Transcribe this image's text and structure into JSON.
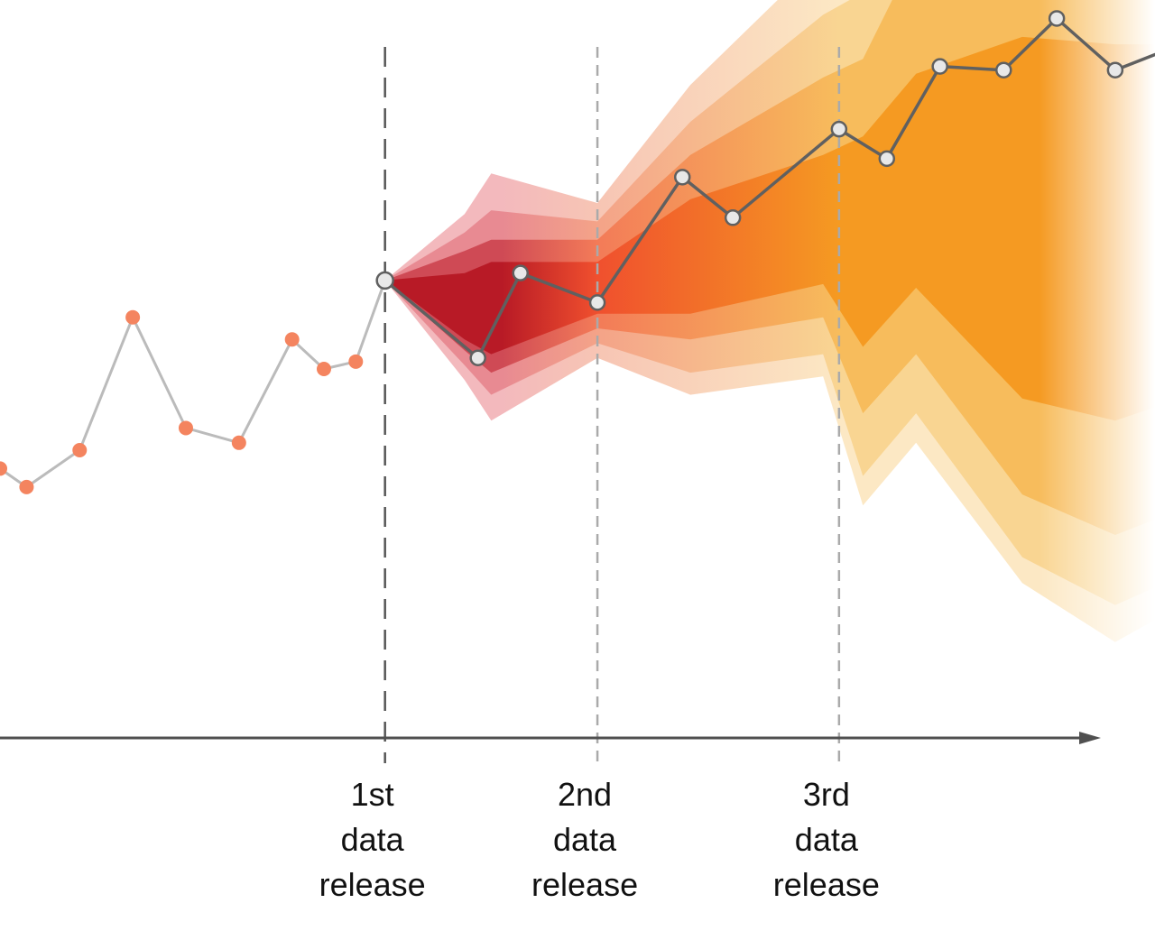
{
  "chart_data": {
    "type": "line",
    "title": "",
    "xlabel": "",
    "ylabel": "",
    "grid": false,
    "legend": "none",
    "axes": {
      "y_axis_visible": false,
      "x_axis_arrow": true
    },
    "xlim": [
      -1.0,
      42.5
    ],
    "ylim": [
      0,
      10
    ],
    "history": {
      "color": "#f4845f",
      "line_color": "#bbbbbb",
      "x": [
        -1,
        0,
        2,
        4,
        6,
        8,
        10,
        11.2,
        12.4,
        13.5
      ],
      "y": [
        3.65,
        3.4,
        3.9,
        5.7,
        4.2,
        4.0,
        5.4,
        5.0,
        5.1,
        6.2
      ]
    },
    "forecast_path": {
      "line_color": "#606060",
      "marker_fill": "#e8e8e8",
      "x": [
        13.5,
        17.0,
        18.6,
        21.5,
        24.7,
        26.6,
        30.6,
        32.4,
        34.4,
        36.8,
        38.8,
        41.0,
        43.5
      ],
      "y": [
        6.2,
        5.15,
        6.3,
        5.9,
        7.6,
        7.05,
        8.25,
        7.85,
        9.1,
        9.05,
        9.75,
        9.05,
        9.4
      ]
    },
    "fan_bands": {
      "colors_near": [
        "#f3b9bd",
        "#e88a92",
        "#cf4a55",
        "#b81a26"
      ],
      "colors_mid": [
        "#f7c5b4",
        "#f4a388",
        "#f37b58",
        "#f0502e"
      ],
      "colors_far": [
        "#fce8c4",
        "#f9d592",
        "#f7bc5c",
        "#f59a22"
      ],
      "x": [
        13.5,
        16.5,
        17.5,
        21.5,
        25.0,
        30.0,
        31.5,
        33.5,
        37.5,
        41.0,
        43.5
      ],
      "levels": [
        {
          "lower": [
            6.2,
            4.85,
            4.3,
            5.15,
            4.65,
            4.9,
            3.15,
            4.0,
            2.1,
            1.3,
            1.8
          ],
          "upper": [
            6.2,
            7.1,
            7.65,
            7.25,
            8.85,
            10.6,
            11.1,
            12.8,
            13.7,
            13.9,
            13.8
          ]
        },
        {
          "lower": [
            6.2,
            5.05,
            4.65,
            5.35,
            4.95,
            5.2,
            3.55,
            4.4,
            2.45,
            1.8,
            2.2
          ],
          "upper": [
            6.2,
            6.85,
            7.15,
            7.0,
            8.35,
            9.8,
            10.1,
            11.6,
            12.4,
            12.8,
            12.7
          ]
        },
        {
          "lower": [
            6.2,
            5.25,
            4.95,
            5.55,
            5.4,
            5.7,
            4.4,
            5.2,
            3.3,
            2.75,
            3.1
          ],
          "upper": [
            6.2,
            6.6,
            6.75,
            6.75,
            7.9,
            8.95,
            9.2,
            10.65,
            11.25,
            11.6,
            11.5
          ]
        },
        {
          "lower": [
            6.2,
            5.4,
            5.2,
            5.75,
            5.75,
            6.15,
            5.3,
            6.1,
            4.6,
            4.3,
            4.6
          ],
          "upper": [
            6.2,
            6.3,
            6.45,
            6.45,
            7.3,
            7.9,
            8.15,
            9.0,
            9.5,
            9.4,
            9.4
          ]
        }
      ]
    },
    "releases": [
      {
        "x": 13.5,
        "line_color": "#555555",
        "label": [
          "1st",
          "data",
          "release"
        ]
      },
      {
        "x": 21.5,
        "line_color": "#aaaaaa",
        "label": [
          "2nd",
          "data",
          "release"
        ]
      },
      {
        "x": 30.6,
        "line_color": "#aaaaaa",
        "label": [
          "3rd",
          "data",
          "release"
        ]
      }
    ]
  }
}
